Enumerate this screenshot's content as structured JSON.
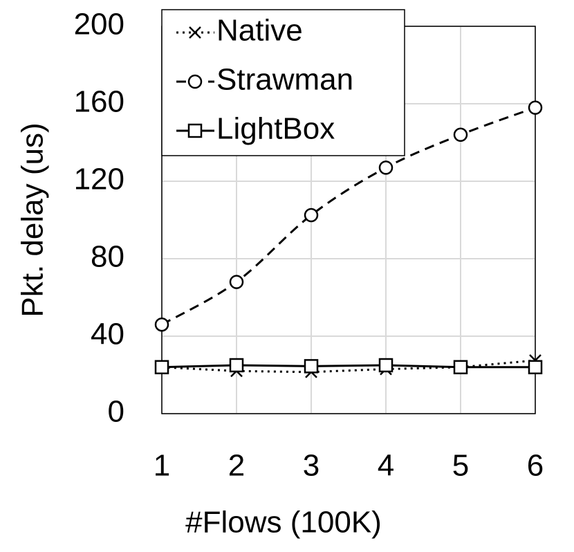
{
  "chart_data": {
    "type": "line",
    "x_label": "#Flows (100K)",
    "y_label": "Pkt. delay (us)",
    "x": [
      1,
      2,
      3,
      4,
      5,
      6
    ],
    "series": [
      {
        "name": "Native",
        "color": "#000000",
        "line_style": "dotted",
        "marker": "x",
        "values": [
          24,
          22,
          21.5,
          23,
          24,
          27.5
        ]
      },
      {
        "name": "Strawman",
        "color": "#000000",
        "line_style": "dashed",
        "marker": "circle",
        "values": [
          46,
          68,
          102.5,
          127,
          144,
          158
        ]
      },
      {
        "name": "LightBox",
        "color": "#000000",
        "line_style": "solid",
        "marker": "square",
        "values": [
          24,
          25,
          24.5,
          25,
          24,
          24
        ]
      }
    ],
    "xlim": [
      1,
      6
    ],
    "xticks": [
      1,
      2,
      3,
      4,
      5,
      6
    ],
    "ylim": [
      0,
      200
    ],
    "yticks": [
      0,
      40,
      80,
      120,
      160,
      200
    ],
    "grid": true,
    "legend_position": "top-left"
  }
}
